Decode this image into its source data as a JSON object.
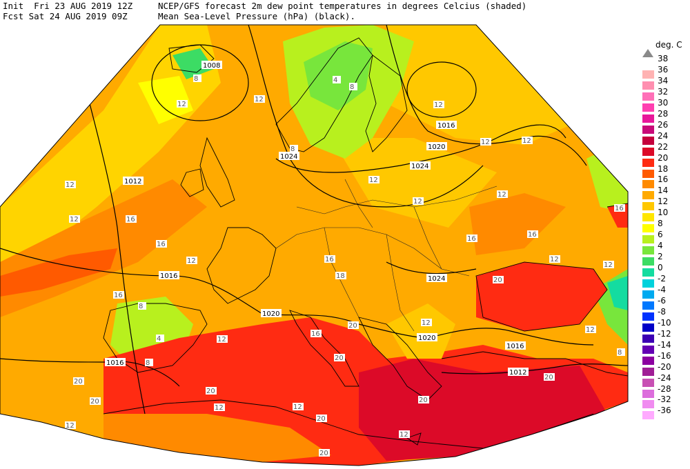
{
  "header": {
    "init_label": "Init",
    "init_time": "Fri 23 AUG 2019 12Z",
    "fcst_label": "Fcst",
    "fcst_time": "Sat 24 AUG 2019 09Z",
    "title_line1": "NCEP/GFS forecast 2m dew point temperatures in degrees Celcius (shaded)",
    "title_line2": "Mean Sea-Level Pressure (hPa) (black)."
  },
  "colorbar": {
    "title": "deg. C",
    "levels": [
      {
        "label": "38",
        "color": "#8a8a8a"
      },
      {
        "label": "36",
        "color": "#ffb3b3"
      },
      {
        "label": "34",
        "color": "#ff8fb0"
      },
      {
        "label": "32",
        "color": "#ff70b8"
      },
      {
        "label": "30",
        "color": "#ff3fb0"
      },
      {
        "label": "28",
        "color": "#e8189a"
      },
      {
        "label": "26",
        "color": "#c80a78"
      },
      {
        "label": "24",
        "color": "#c4003c"
      },
      {
        "label": "22",
        "color": "#dc0a28"
      },
      {
        "label": "20",
        "color": "#ff2b12"
      },
      {
        "label": "18",
        "color": "#ff5a00"
      },
      {
        "label": "16",
        "color": "#ff8a00"
      },
      {
        "label": "14",
        "color": "#ffaa00"
      },
      {
        "label": "12",
        "color": "#ffc800"
      },
      {
        "label": "10",
        "color": "#ffe600"
      },
      {
        "label": "8",
        "color": "#ffff00"
      },
      {
        "label": "6",
        "color": "#b8f01e"
      },
      {
        "label": "4",
        "color": "#78e63c"
      },
      {
        "label": "2",
        "color": "#3cdc64"
      },
      {
        "label": "0",
        "color": "#14dca0"
      },
      {
        "label": "-2",
        "color": "#00d2dc"
      },
      {
        "label": "-4",
        "color": "#00aaf0"
      },
      {
        "label": "-6",
        "color": "#0078ff"
      },
      {
        "label": "-8",
        "color": "#0032ff"
      },
      {
        "label": "-10",
        "color": "#0000c8"
      },
      {
        "label": "-12",
        "color": "#3c00b4"
      },
      {
        "label": "-14",
        "color": "#6400b4"
      },
      {
        "label": "-16",
        "color": "#8c00a0"
      },
      {
        "label": "-20",
        "color": "#a01e96"
      },
      {
        "label": "-24",
        "color": "#c850b4"
      },
      {
        "label": "-28",
        "color": "#dc6edc"
      },
      {
        "label": "-32",
        "color": "#f08cf0"
      },
      {
        "label": "-36",
        "color": "#ffaaff"
      }
    ]
  },
  "isobar_labels": [
    "1008",
    "1012",
    "1016",
    "1016",
    "1016",
    "1016",
    "1020",
    "1020",
    "1020",
    "1024",
    "1024",
    "1024",
    "1012"
  ],
  "dewpoint_labels": [
    "8",
    "12",
    "12",
    "12",
    "16",
    "16",
    "12",
    "12",
    "16",
    "18",
    "16",
    "16",
    "20",
    "20",
    "20",
    "20",
    "12",
    "12",
    "20",
    "12",
    "16",
    "12",
    "8",
    "4",
    "8",
    "20",
    "12",
    "8",
    "12",
    "4",
    "8",
    "12",
    "12",
    "12",
    "12",
    "16",
    "12",
    "12",
    "12",
    "20",
    "20",
    "12",
    "8",
    "16",
    "20",
    "12",
    "20"
  ]
}
